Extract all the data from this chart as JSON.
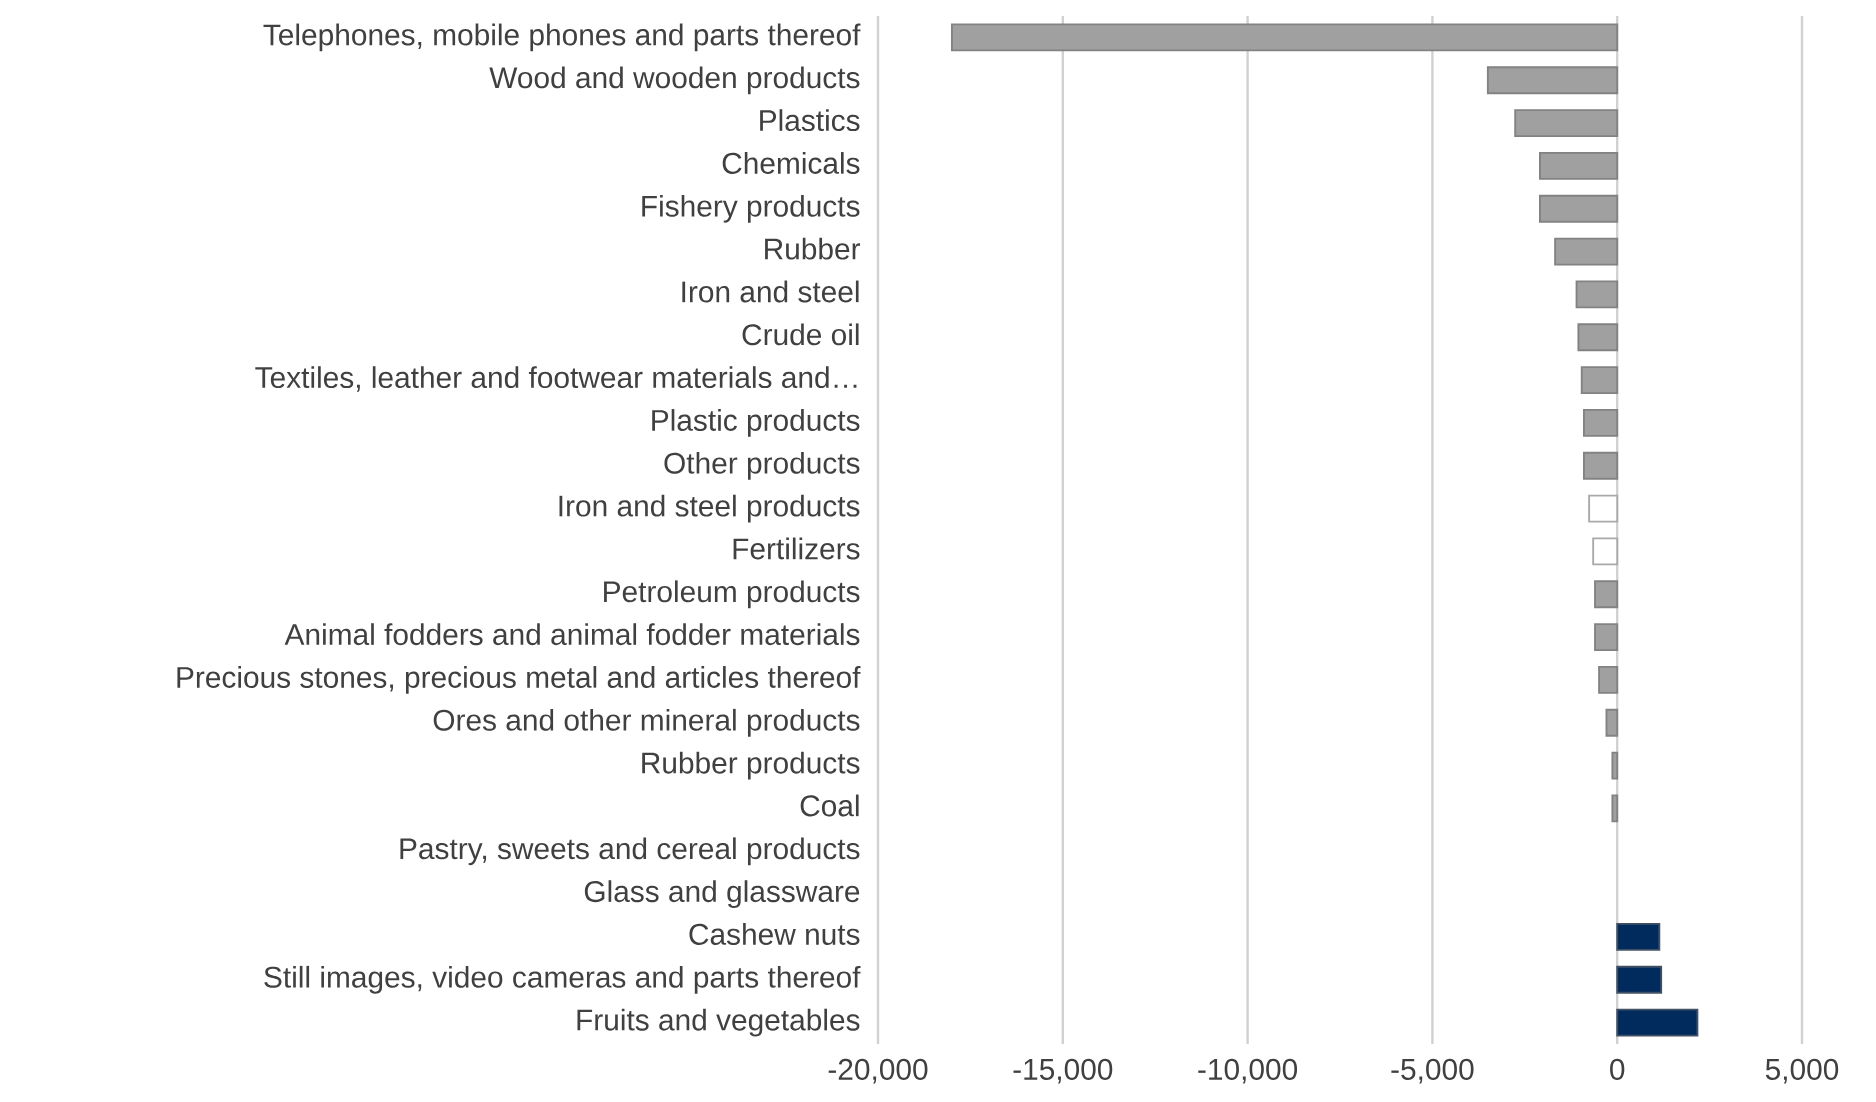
{
  "chart_data": {
    "type": "bar",
    "orientation": "horizontal",
    "categories": [
      "Telephones, mobile phones and parts thereof",
      "Wood and wooden products",
      "Plastics",
      "Chemicals",
      "Fishery products",
      "Rubber",
      "Iron and steel",
      "Crude oil",
      "Textiles, leather and footwear materials and…",
      "Plastic products",
      "Other products",
      "Iron and steel products",
      "Fertilizers",
      "Petroleum products",
      "Animal fodders and animal fodder materials",
      "Precious stones, precious metal and articles thereof",
      "Ores and other mineral products",
      "Rubber products",
      "Coal",
      "Pastry, sweets and cereal products",
      "Glass and glassware",
      "Cashew nuts",
      "Still images, video cameras and parts thereof",
      "Fruits and vegetables"
    ],
    "values": [
      -18000,
      -3500,
      -2760,
      -2090,
      -2090,
      -1680,
      -1100,
      -1050,
      -960,
      -900,
      -900,
      -760,
      -650,
      -600,
      -600,
      -490,
      -290,
      -130,
      -130,
      0,
      0,
      1140,
      1190,
      2170
    ],
    "colors": [
      "#a0a0a0",
      "#a0a0a0",
      "#a0a0a0",
      "#a0a0a0",
      "#a0a0a0",
      "#a0a0a0",
      "#a0a0a0",
      "#a0a0a0",
      "#a0a0a0",
      "#a0a0a0",
      "#a0a0a0",
      "#ffffff",
      "#ffffff",
      "#a0a0a0",
      "#a0a0a0",
      "#a0a0a0",
      "#a0a0a0",
      "#a0a0a0",
      "#a0a0a0",
      "#a0a0a0",
      "#a0a0a0",
      "#002b5c",
      "#002b5c",
      "#002b5c"
    ],
    "xlim": [
      -20000,
      5000
    ],
    "xticks": [
      {
        "value": -20000,
        "label": "-20,000"
      },
      {
        "value": -15000,
        "label": "-15,000"
      },
      {
        "value": -10000,
        "label": "-10,000"
      },
      {
        "value": -5000,
        "label": "-5,000"
      },
      0,
      {
        "value": 5000,
        "label": "5,000"
      }
    ],
    "grid": "x"
  }
}
